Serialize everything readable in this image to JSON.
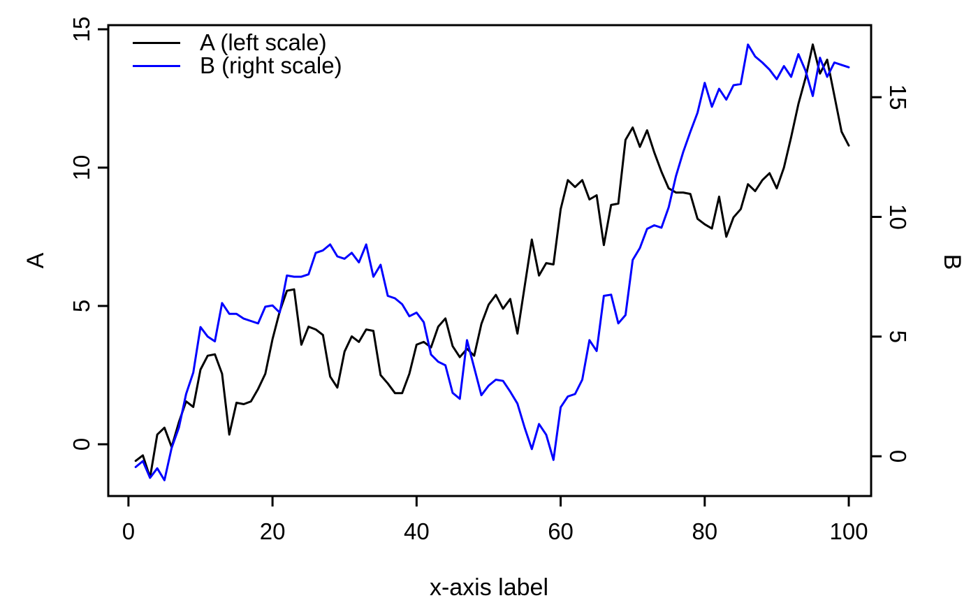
{
  "chart_data": {
    "type": "line",
    "title": "",
    "xlabel": "x-axis label",
    "ylabel_left": "A",
    "ylabel_right": "B",
    "grid": false,
    "legend_position": "top-left-inside",
    "legend": [
      {
        "label": "A (left scale)",
        "color": "#000000"
      },
      {
        "label": "B (right scale)",
        "color": "#0000ff"
      }
    ],
    "x_tick_labels": [
      "0",
      "20",
      "40",
      "60",
      "80",
      "100"
    ],
    "x_ticks": [
      0,
      20,
      40,
      60,
      80,
      100
    ],
    "left_tick_labels": [
      "0",
      "5",
      "10",
      "15"
    ],
    "left_ticks": [
      0,
      5,
      10,
      15
    ],
    "right_tick_labels": [
      "0",
      "5",
      "10",
      "15"
    ],
    "right_ticks": [
      0,
      5,
      10,
      15
    ],
    "xlim": [
      -2.8,
      103.1
    ],
    "ylim_left": [
      -1.87,
      15.15
    ],
    "ylim_right": [
      -1.66,
      18.01
    ],
    "x": [
      1,
      2,
      3,
      4,
      5,
      6,
      7,
      8,
      9,
      10,
      11,
      12,
      13,
      14,
      15,
      16,
      17,
      18,
      19,
      20,
      21,
      22,
      23,
      24,
      25,
      26,
      27,
      28,
      29,
      30,
      31,
      32,
      33,
      34,
      35,
      36,
      37,
      38,
      39,
      40,
      41,
      42,
      43,
      44,
      45,
      46,
      47,
      48,
      49,
      50,
      51,
      52,
      53,
      54,
      55,
      56,
      57,
      58,
      59,
      60,
      61,
      62,
      63,
      64,
      65,
      66,
      67,
      68,
      69,
      70,
      71,
      72,
      73,
      74,
      75,
      76,
      77,
      78,
      79,
      80,
      81,
      82,
      83,
      84,
      85,
      86,
      87,
      88,
      89,
      90,
      91,
      92,
      93,
      94,
      95,
      96,
      97,
      98,
      99,
      100
    ],
    "series": [
      {
        "name": "A (left scale)",
        "axis": "left",
        "color": "#000000",
        "values": [
          -0.6,
          -0.4,
          -1.2,
          0.35,
          0.6,
          -0.1,
          0.8,
          1.55,
          1.35,
          2.7,
          3.2,
          3.25,
          2.55,
          0.35,
          1.5,
          1.45,
          1.55,
          2.0,
          2.55,
          3.8,
          4.8,
          5.55,
          5.6,
          3.6,
          4.25,
          4.15,
          3.95,
          2.45,
          2.05,
          3.35,
          3.9,
          3.7,
          4.15,
          4.1,
          2.5,
          2.2,
          1.85,
          1.85,
          2.55,
          3.6,
          3.7,
          3.5,
          4.25,
          4.55,
          3.55,
          3.15,
          3.45,
          3.2,
          4.35,
          5.05,
          5.4,
          4.9,
          5.25,
          4.0,
          5.7,
          7.4,
          6.1,
          6.55,
          6.5,
          8.5,
          9.55,
          9.3,
          9.55,
          8.85,
          9.0,
          7.2,
          8.65,
          8.7,
          11.0,
          11.45,
          10.75,
          11.35,
          10.55,
          9.85,
          9.25,
          9.1,
          9.1,
          9.05,
          8.15,
          7.95,
          7.8,
          8.95,
          7.5,
          8.2,
          8.5,
          9.4,
          9.15,
          9.55,
          9.8,
          9.25,
          10.0,
          11.1,
          12.3,
          13.25,
          14.45,
          13.4,
          13.9,
          12.6,
          11.3,
          10.8
        ]
      },
      {
        "name": "B (right scale)",
        "axis": "right",
        "color": "#0000ff",
        "values": [
          -0.45,
          -0.2,
          -0.9,
          -0.5,
          -1.0,
          0.35,
          1.2,
          2.6,
          3.5,
          5.4,
          5.0,
          4.8,
          6.4,
          5.95,
          5.95,
          5.75,
          5.65,
          5.55,
          6.25,
          6.3,
          6.0,
          7.55,
          7.5,
          7.5,
          7.6,
          8.5,
          8.6,
          8.85,
          8.35,
          8.25,
          8.5,
          8.1,
          8.85,
          7.5,
          8.0,
          6.7,
          6.6,
          6.35,
          5.85,
          6.0,
          5.6,
          4.25,
          3.95,
          3.8,
          2.65,
          2.4,
          4.85,
          3.7,
          2.55,
          2.95,
          3.2,
          3.15,
          2.7,
          2.2,
          1.2,
          0.3,
          1.35,
          0.9,
          -0.15,
          2.05,
          2.5,
          2.6,
          3.2,
          4.85,
          4.4,
          6.7,
          6.75,
          5.55,
          5.9,
          8.2,
          8.7,
          9.5,
          9.65,
          9.55,
          10.4,
          11.7,
          12.7,
          13.55,
          14.35,
          15.6,
          14.6,
          15.35,
          14.9,
          15.5,
          15.55,
          17.2,
          16.7,
          16.45,
          16.15,
          15.75,
          16.3,
          15.85,
          16.8,
          16.1,
          15.05,
          16.65,
          15.85,
          16.45,
          16.35,
          16.25
        ]
      }
    ]
  }
}
